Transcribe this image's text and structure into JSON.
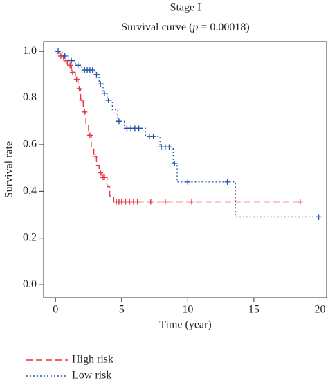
{
  "chart_data": {
    "type": "survival",
    "title": "Stage I",
    "subtitle_parts": [
      "Survival curve (",
      "p",
      " = 0.00018)"
    ],
    "x_label": "Time (year)",
    "y_label": "Survival rate",
    "xlim": [
      -0.9,
      20.5
    ],
    "xticks": [
      0,
      5,
      10,
      15,
      20
    ],
    "ylim": [
      -0.056,
      1.042
    ],
    "yticks": [
      {
        "value": 0,
        "label": "0.0"
      },
      0.2,
      0.4,
      0.6,
      0.8,
      {
        "value": 1,
        "label": "1.0"
      }
    ],
    "series": [
      {
        "name": "High risk",
        "color": "#e8323c",
        "dash": "9,5",
        "x": [
          0,
          0.3,
          0.6,
          0.9,
          1.2,
          1.5,
          1.7,
          1.9,
          2.1,
          2.3,
          2.5,
          2.7,
          2.9,
          3.1,
          3.3,
          3.5,
          3.9,
          4.1,
          4.4,
          18.5
        ],
        "values": [
          1.0,
          0.98,
          0.96,
          0.94,
          0.91,
          0.88,
          0.84,
          0.79,
          0.74,
          0.69,
          0.64,
          0.59,
          0.55,
          0.51,
          0.48,
          0.46,
          0.42,
          0.38,
          0.355,
          0.355
        ],
        "censor_x": [
          0.4,
          0.8,
          1.1,
          1.3,
          1.6,
          1.8,
          2.0,
          2.2,
          2.6,
          3.0,
          3.4,
          3.6,
          3.7,
          4.6,
          4.8,
          5.0,
          5.3,
          5.6,
          5.9,
          6.2,
          7.2,
          8.3,
          10.3,
          18.5
        ],
        "censor_values": [
          0.98,
          0.96,
          0.94,
          0.91,
          0.88,
          0.84,
          0.79,
          0.74,
          0.64,
          0.55,
          0.48,
          0.46,
          0.46,
          0.355,
          0.355,
          0.355,
          0.355,
          0.355,
          0.355,
          0.355,
          0.355,
          0.355,
          0.355,
          0.355
        ]
      },
      {
        "name": "Low risk",
        "color": "#2257a8",
        "dash": "2,3",
        "x": [
          0,
          0.5,
          1.0,
          1.5,
          2.0,
          3.0,
          3.3,
          3.6,
          3.9,
          4.3,
          4.7,
          5.2,
          6.8,
          7.9,
          8.9,
          9.2,
          13.6,
          19.9
        ],
        "values": [
          1.0,
          0.98,
          0.96,
          0.94,
          0.92,
          0.9,
          0.86,
          0.82,
          0.79,
          0.75,
          0.7,
          0.67,
          0.635,
          0.59,
          0.52,
          0.44,
          0.29,
          0.29
        ],
        "censor_x": [
          0.2,
          0.7,
          1.2,
          1.7,
          2.2,
          2.4,
          2.6,
          2.8,
          3.1,
          3.4,
          3.7,
          4.0,
          4.8,
          5.4,
          5.7,
          6.0,
          6.3,
          7.1,
          7.4,
          8.0,
          8.3,
          8.6,
          9.0,
          10.0,
          13.0,
          19.9
        ],
        "censor_values": [
          1.0,
          0.98,
          0.96,
          0.94,
          0.92,
          0.92,
          0.92,
          0.92,
          0.9,
          0.86,
          0.82,
          0.79,
          0.7,
          0.67,
          0.67,
          0.67,
          0.67,
          0.635,
          0.635,
          0.59,
          0.59,
          0.59,
          0.52,
          0.44,
          0.44,
          0.29
        ]
      }
    ]
  }
}
